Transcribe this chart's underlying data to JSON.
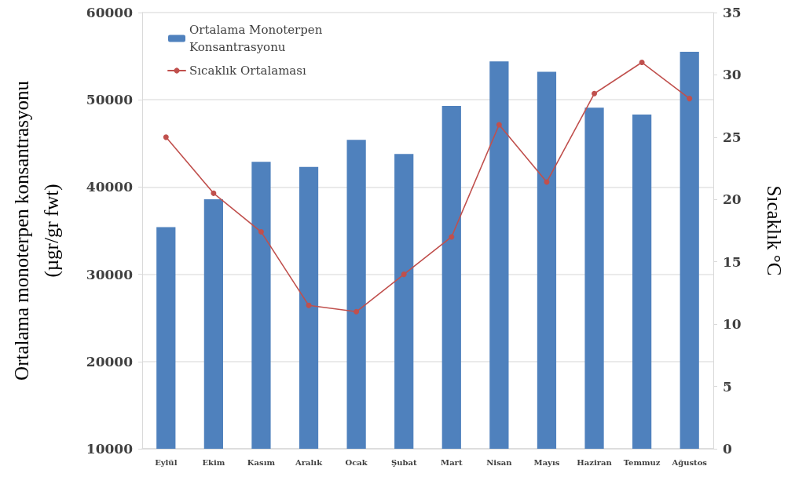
{
  "chart_data": {
    "type": "bar",
    "categories": [
      "Eylül",
      "Ekim",
      "Kasım",
      "Aralık",
      "Ocak",
      "Şubat",
      "Mart",
      "Nisan",
      "Mayıs",
      "Haziran",
      "Temmuz",
      "Ağustos"
    ],
    "series": [
      {
        "name": "Ortalama Monoterpen Konsantrasyonu",
        "color": "#4f81bd",
        "values": [
          35400,
          38600,
          42900,
          42300,
          45400,
          43800,
          49300,
          54400,
          53200,
          49100,
          48300,
          55500
        ]
      },
      {
        "name": "Sıcaklık Ortalaması",
        "type": "line",
        "axis": "y2",
        "color": "#c0504d",
        "values": [
          25,
          20.5,
          17.4,
          11.5,
          11,
          14,
          17,
          26,
          21.4,
          28.5,
          31,
          28.1
        ]
      }
    ],
    "ylabel": "Ortalama monoterpen konsantrasyonu\n(µgr/gr fwt)",
    "y2label": "Sıcaklık °C",
    "ylim": [
      10000,
      60000
    ],
    "yticks": [
      10000,
      20000,
      30000,
      40000,
      50000,
      60000
    ],
    "y2lim": [
      0,
      35
    ],
    "y2ticks": [
      0,
      5,
      10,
      15,
      20,
      25,
      30,
      35
    ],
    "grid": "y",
    "legend": "top left",
    "marker": "circle",
    "line_style": "solid"
  }
}
